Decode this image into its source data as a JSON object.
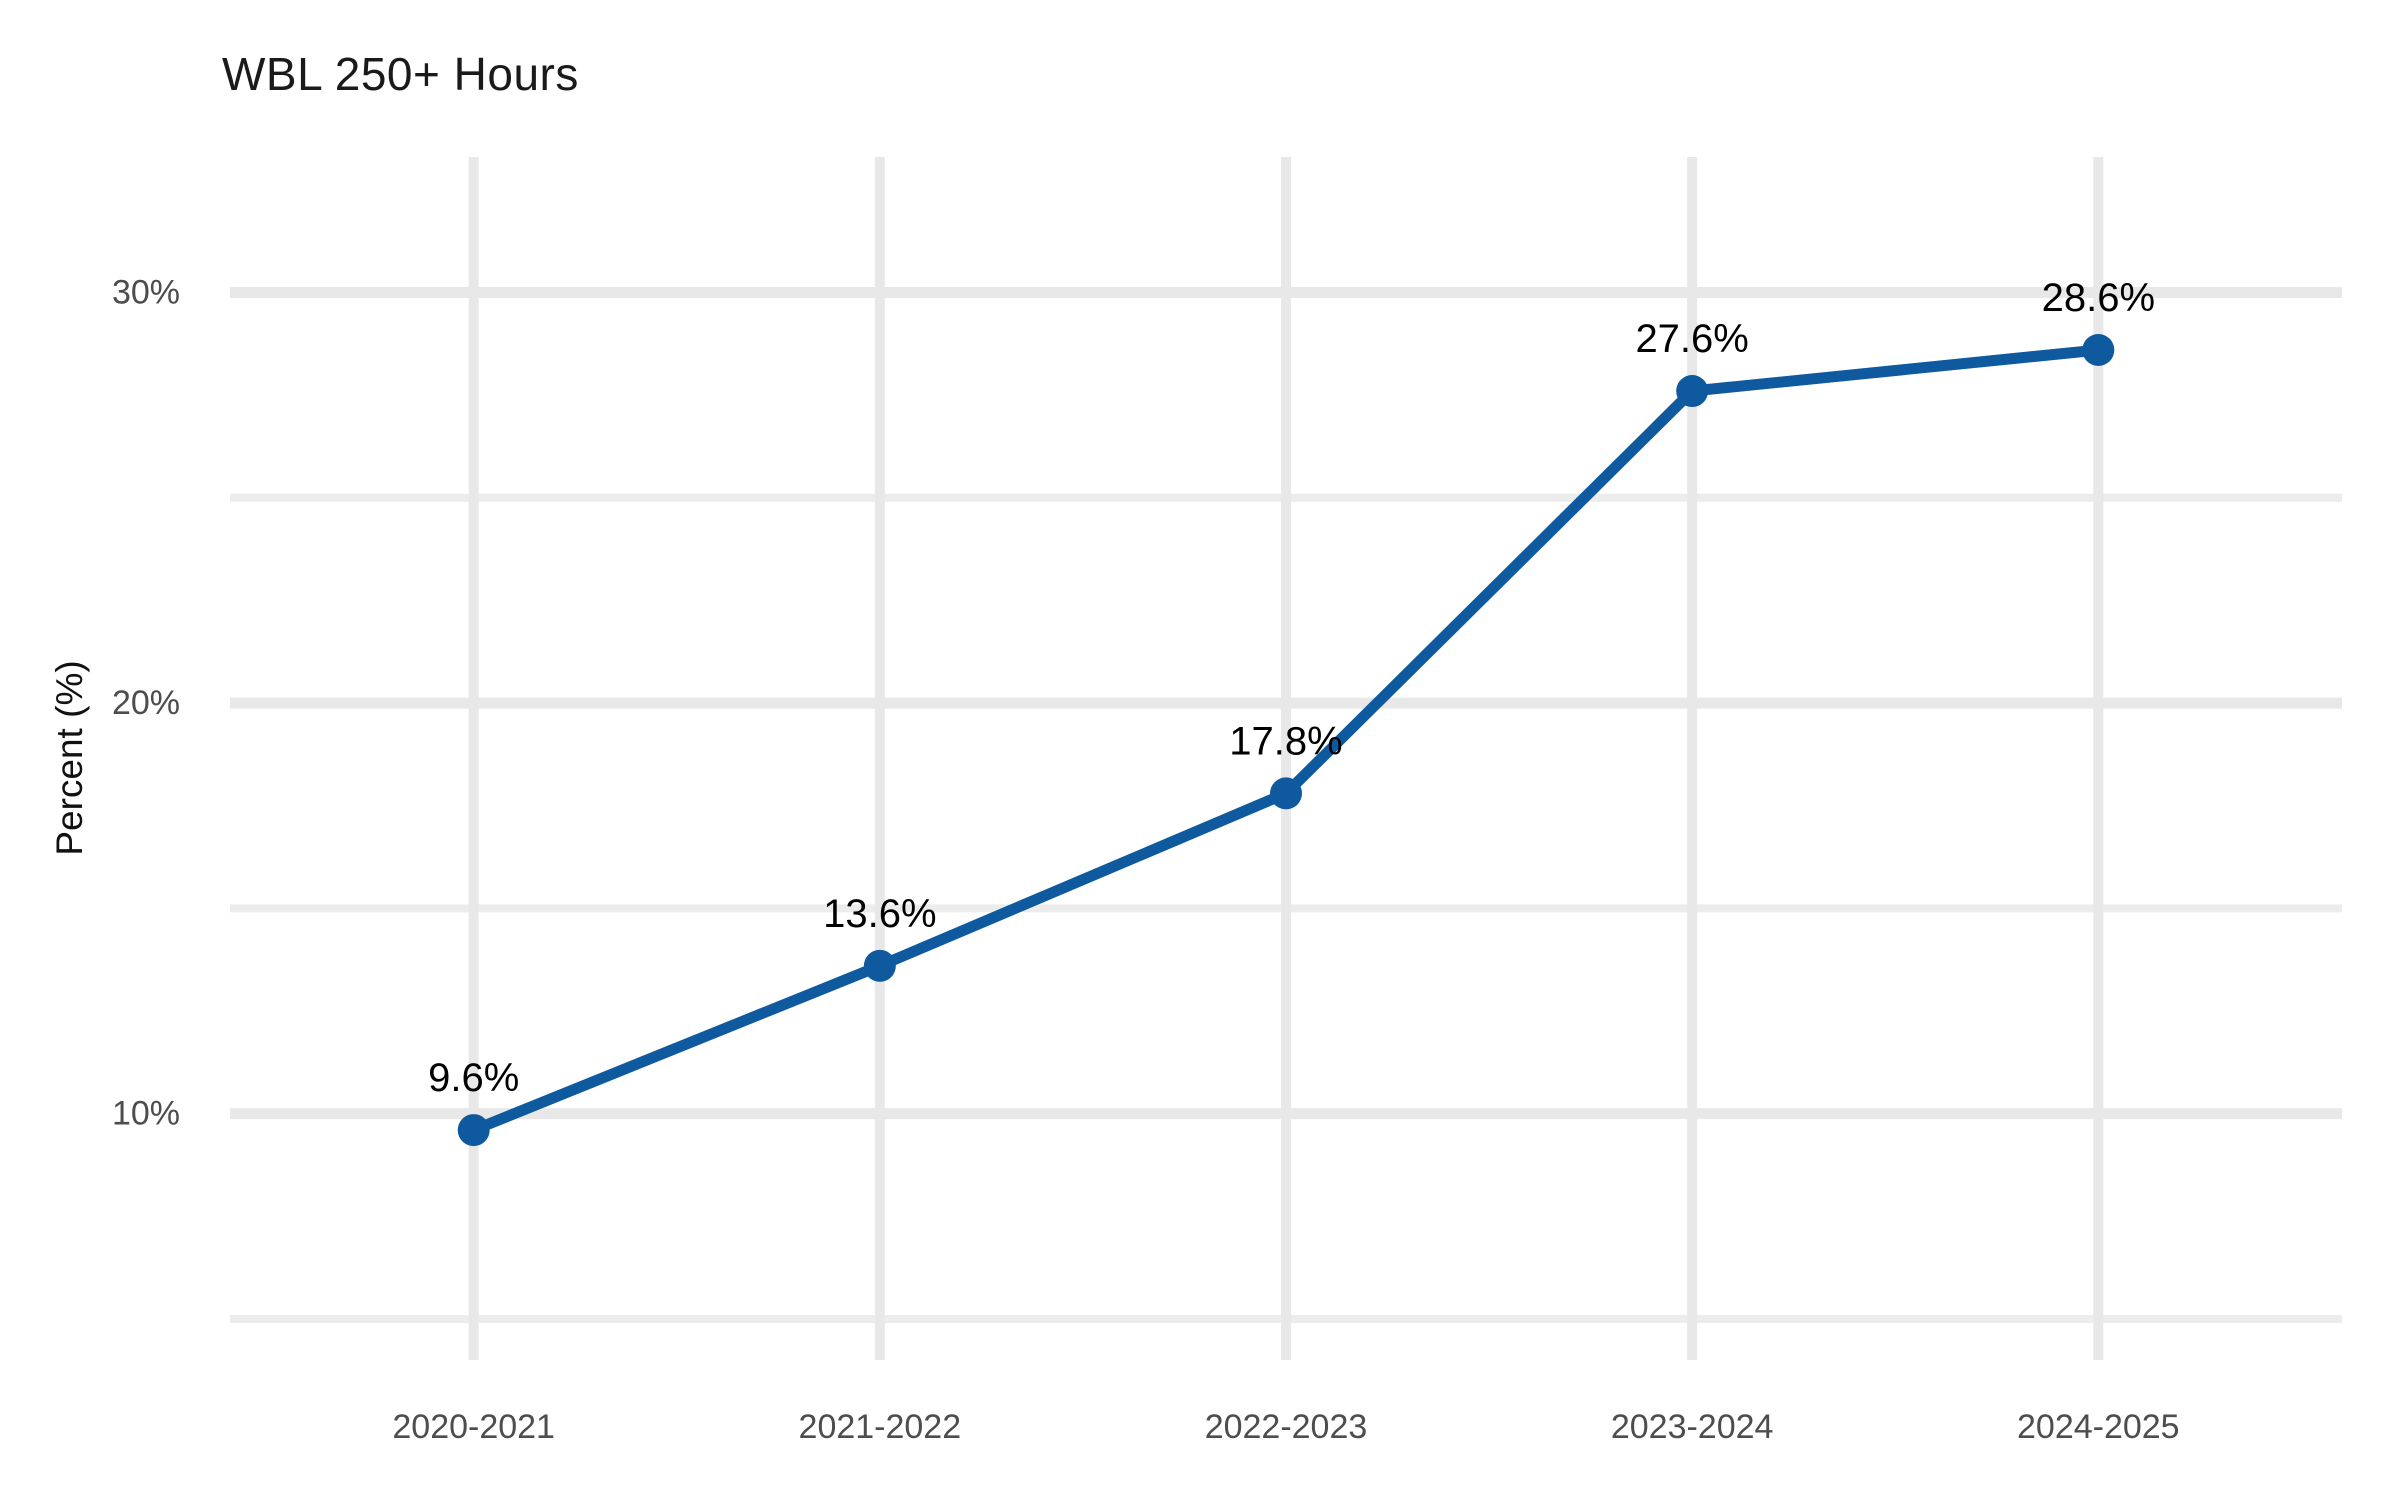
{
  "chart_data": {
    "type": "line",
    "title": "WBL 250+ Hours",
    "xlabel": "",
    "ylabel": "Percent (%)",
    "categories": [
      "2020-2021",
      "2021-2022",
      "2022-2023",
      "2023-2024",
      "2024-2025"
    ],
    "series": [
      {
        "name": "WBL 250+ Hours",
        "values": [
          9.6,
          13.6,
          17.8,
          27.6,
          28.6
        ],
        "point_labels": [
          "9.6%",
          "13.6%",
          "17.8%",
          "27.6%",
          "28.6%"
        ]
      }
    ],
    "y_ticks": [
      {
        "value": 10,
        "label": "10%"
      },
      {
        "value": 20,
        "label": "20%"
      },
      {
        "value": 30,
        "label": "30%"
      }
    ],
    "y_minor_ticks": [
      5,
      15,
      25
    ],
    "ylim": [
      4.0,
      33.3
    ],
    "grid": "major-and-minor, light gray, no axis lines, no legend",
    "legend_position": "none",
    "colors": {
      "line": "#0f5a9e",
      "marker": "#0f5a9e",
      "grid_major": "#e8e8e8",
      "grid_minor": "#ececec",
      "tick_label": "#4d4d4d",
      "data_label": "#000000",
      "title": "#1a1a1a",
      "axis_title": "#111111",
      "background": "#ffffff"
    }
  }
}
